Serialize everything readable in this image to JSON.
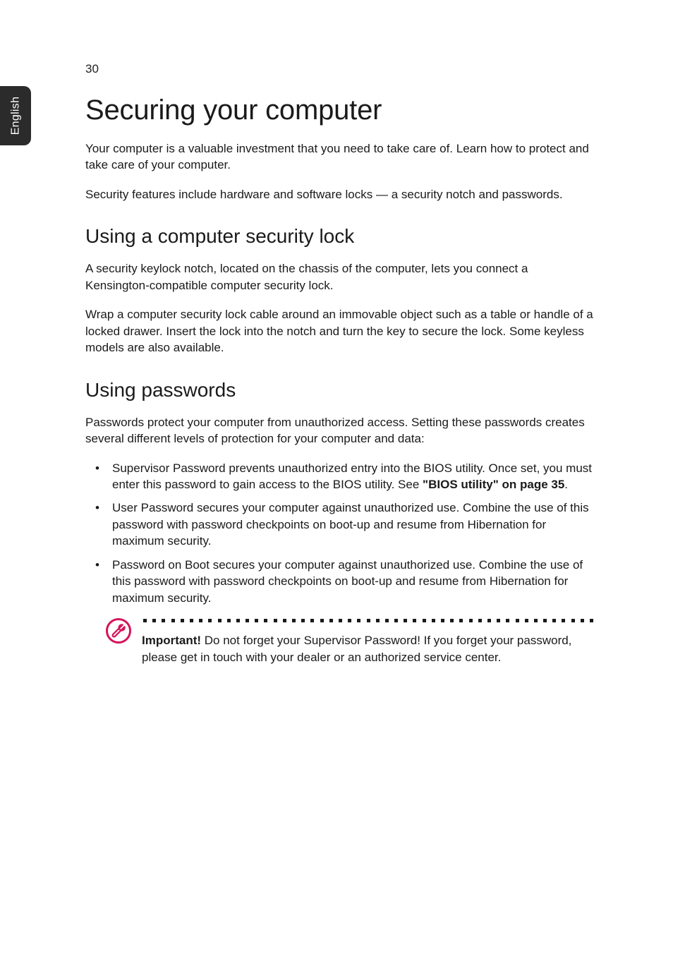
{
  "page_number": "30",
  "side_tab": "English",
  "h1": "Securing your computer",
  "intro_p1": "Your computer is a valuable investment that you need to take care of. Learn how to protect and take care of your computer.",
  "intro_p2": "Security features include hardware and software locks — a security notch and passwords.",
  "section1": {
    "heading": "Using a computer security lock",
    "p1": "A security keylock notch, located on the chassis of the computer, lets you connect a Kensington-compatible computer security lock.",
    "p2": "Wrap a computer security lock cable around an immovable object such as a table or handle of a locked drawer. Insert the lock into the notch and turn the key to secure the lock. Some keyless models are also available."
  },
  "section2": {
    "heading": "Using passwords",
    "p1": "Passwords protect your computer from unauthorized access. Setting these passwords creates several different levels of protection for your computer and data:",
    "items": [
      {
        "pre": "Supervisor Password prevents unauthorized entry into the BIOS utility. Once set, you must enter this password to gain access to the BIOS utility. See ",
        "bold": "\"BIOS utility\" on page 35",
        "post": "."
      },
      {
        "pre": "User Password secures your computer against unauthorized use. Combine the use of this password with password checkpoints on boot-up and resume from Hibernation for maximum security.",
        "bold": "",
        "post": ""
      },
      {
        "pre": "Password on Boot secures your computer against unauthorized use. Combine the use of this password with password checkpoints on boot-up and resume from Hibernation for maximum security.",
        "bold": "",
        "post": ""
      }
    ],
    "note": {
      "label": "Important!",
      "text": " Do not forget your Supervisor Password! If you forget your password, please get in touch with your dealer or an authorized service center.",
      "icon_stroke": "#d4145a",
      "dot_count": 49
    }
  }
}
